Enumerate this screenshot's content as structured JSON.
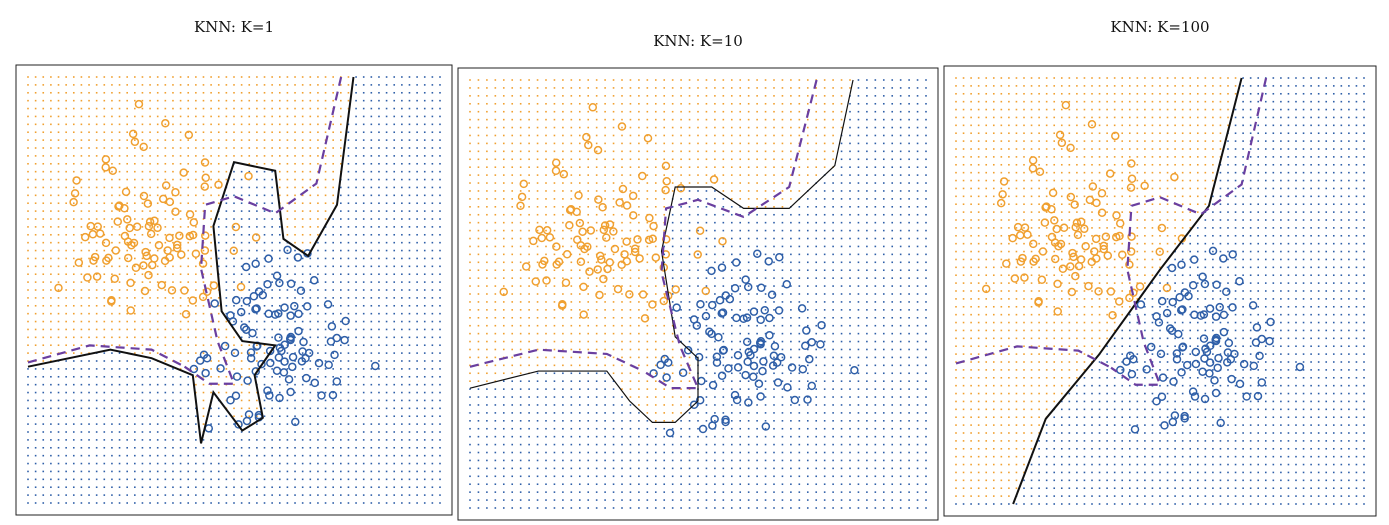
{
  "panels": [
    {
      "title": "KNN: K=1"
    },
    {
      "title": "KNN: K=10"
    },
    {
      "title": "KNN: K=100"
    }
  ]
}
